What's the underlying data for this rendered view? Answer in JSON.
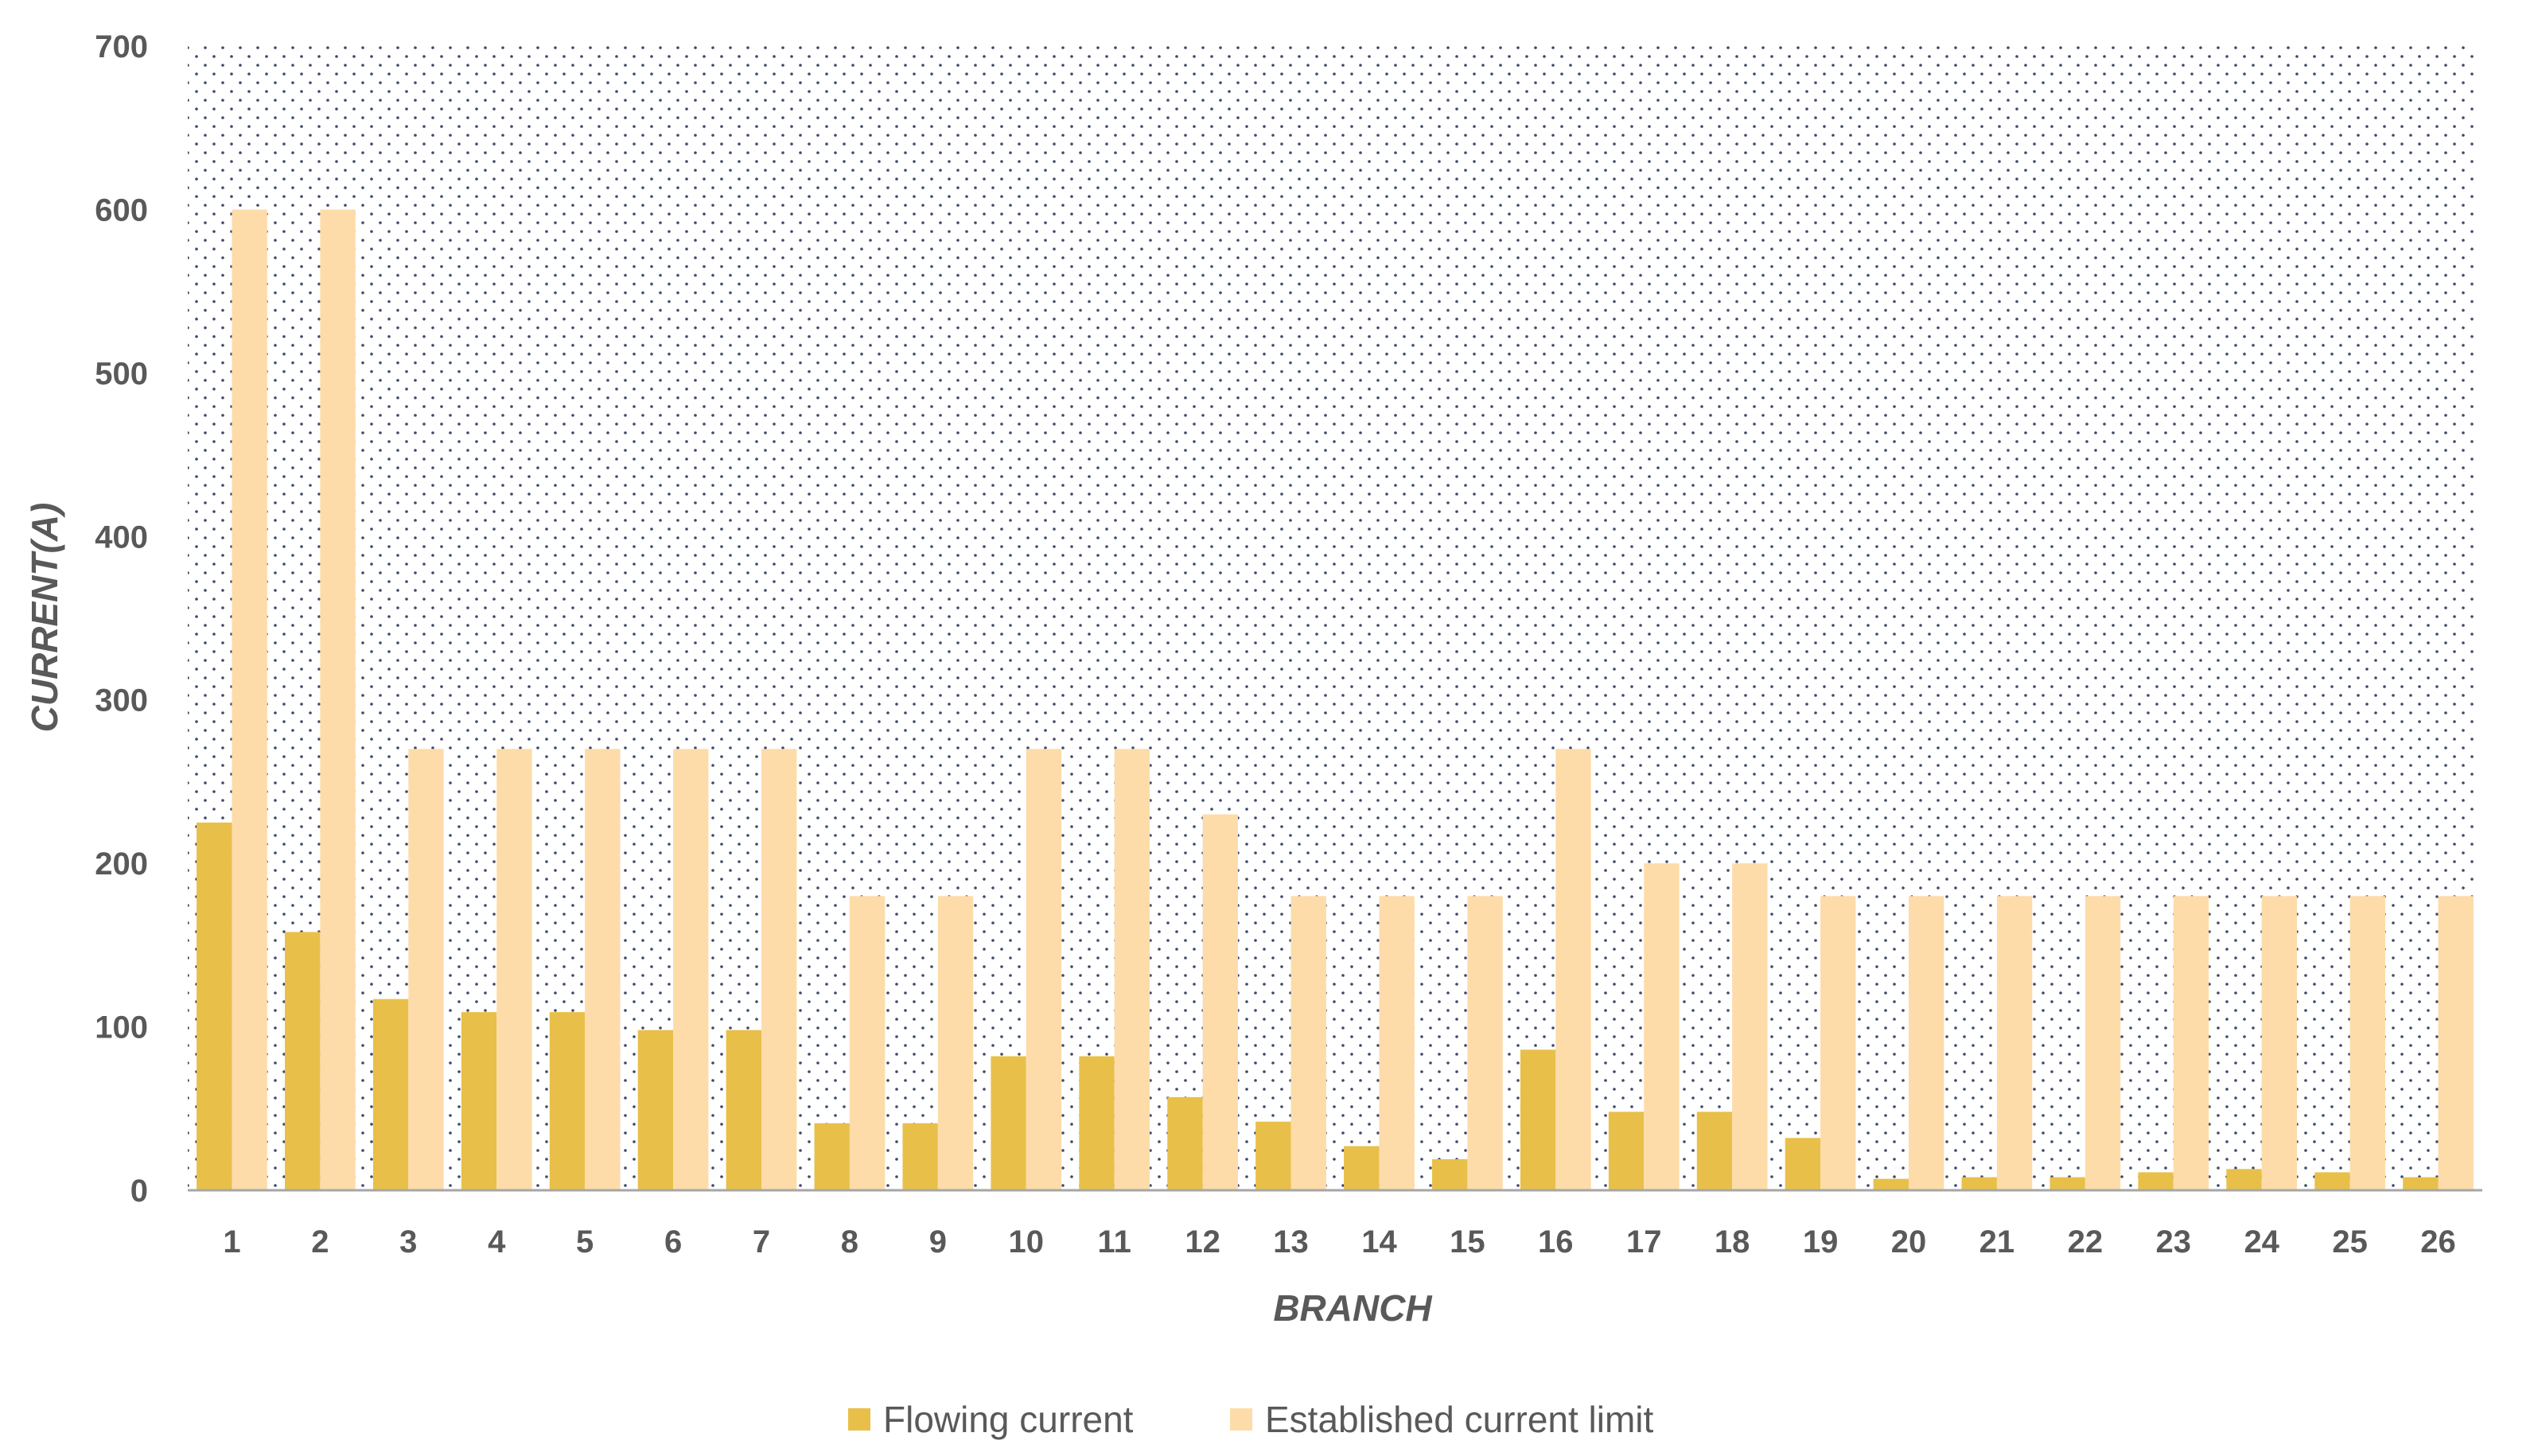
{
  "chart_data": {
    "type": "bar",
    "title": "",
    "xlabel": "BRANCH",
    "ylabel": "CURRENT(A)",
    "ylim": [
      0,
      700
    ],
    "yticks": [
      0,
      100,
      200,
      300,
      400,
      500,
      600,
      700
    ],
    "grid": false,
    "plot_background": "dotted",
    "legend_position": "bottom",
    "categories": [
      "1",
      "2",
      "3",
      "4",
      "5",
      "6",
      "7",
      "8",
      "9",
      "10",
      "11",
      "12",
      "13",
      "14",
      "15",
      "16",
      "17",
      "18",
      "19",
      "20",
      "21",
      "22",
      "23",
      "24",
      "25",
      "26"
    ],
    "series": [
      {
        "name": "Flowing current",
        "color": "#e8c049",
        "values": [
          225,
          158,
          117,
          109,
          109,
          98,
          98,
          41,
          41,
          82,
          82,
          57,
          42,
          27,
          19,
          86,
          48,
          48,
          32,
          7,
          8,
          8,
          11,
          13,
          11,
          8
        ]
      },
      {
        "name": "Established current limit",
        "color": "#fddcaa",
        "values": [
          600,
          600,
          270,
          270,
          270,
          270,
          270,
          180,
          180,
          270,
          270,
          230,
          180,
          180,
          180,
          270,
          200,
          200,
          180,
          180,
          180,
          180,
          180,
          180,
          180,
          180
        ]
      }
    ]
  },
  "colors": {
    "axis_text": "#595959",
    "axis_line": "#a6a6a6",
    "dot_pattern": "#3a4a6b"
  }
}
